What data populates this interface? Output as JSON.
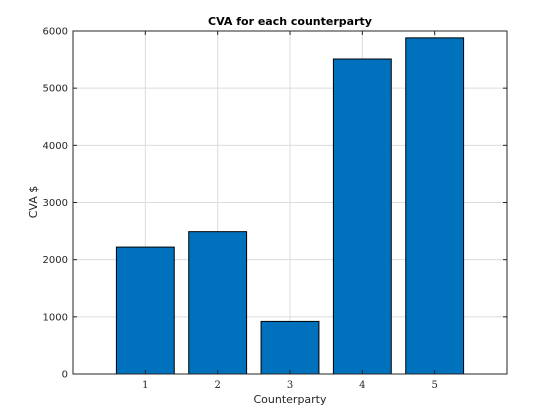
{
  "chart_data": {
    "type": "bar",
    "title": "CVA for each counterparty",
    "xlabel": "Counterparty",
    "ylabel": "CVA $",
    "categories": [
      "1",
      "2",
      "3",
      "4",
      "5"
    ],
    "values": [
      2220,
      2490,
      920,
      5510,
      5880
    ],
    "xlim": [
      0,
      6
    ],
    "ylim": [
      0,
      6000
    ],
    "yticks": [
      0,
      1000,
      2000,
      3000,
      4000,
      5000,
      6000
    ],
    "grid": true,
    "bar_color": "#0072BD"
  }
}
